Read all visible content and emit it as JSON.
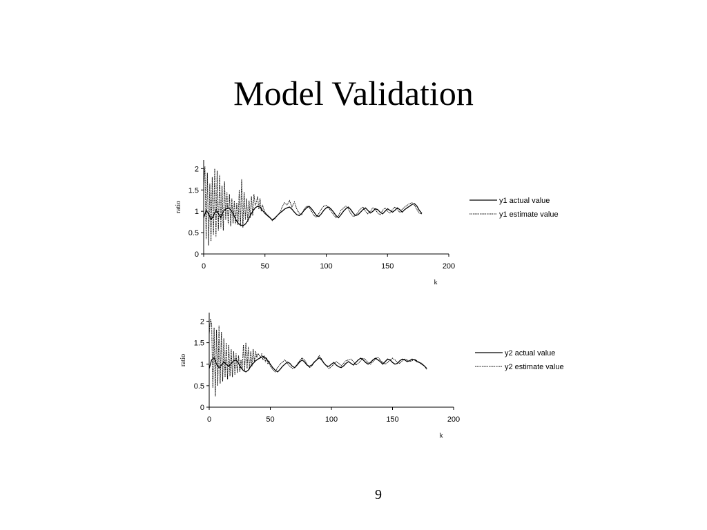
{
  "slide": {
    "title": "Model Validation",
    "page_number": "9"
  },
  "chart_data": [
    {
      "type": "line",
      "xlabel": "k",
      "ylabel": "ratio",
      "xlim": [
        0,
        200
      ],
      "ylim": [
        0,
        2.2
      ],
      "xticks": [
        0,
        50,
        100,
        150,
        200
      ],
      "yticks": [
        0,
        0.5,
        1,
        1.5,
        2
      ],
      "grid": false,
      "legend_position": "right",
      "series": [
        {
          "name": "y1 actual value",
          "style": "solid",
          "color": "#000000",
          "x": [
            0,
            2,
            4,
            6,
            8,
            10,
            12,
            14,
            16,
            18,
            20,
            22,
            24,
            26,
            28,
            30,
            32,
            34,
            36,
            38,
            40,
            42,
            44,
            46,
            48,
            50,
            52,
            54,
            56,
            58,
            60,
            62,
            64,
            66,
            68,
            70,
            72,
            74,
            76,
            78,
            80,
            82,
            84,
            86,
            88,
            90,
            92,
            94,
            96,
            98,
            100,
            102,
            104,
            106,
            108,
            110,
            112,
            114,
            116,
            118,
            120,
            122,
            124,
            126,
            128,
            130,
            132,
            134,
            136,
            138,
            140,
            142,
            144,
            146,
            148,
            150,
            152,
            154,
            156,
            158,
            160,
            162,
            164,
            166,
            168,
            170,
            172,
            174,
            176,
            178
          ],
          "y": [
            0.85,
            1.02,
            0.95,
            0.8,
            0.9,
            1.02,
            0.95,
            0.85,
            1.0,
            1.05,
            1.08,
            1.04,
            0.95,
            0.82,
            0.72,
            0.68,
            0.66,
            0.7,
            0.78,
            0.9,
            1.0,
            1.08,
            1.12,
            1.1,
            1.02,
            0.95,
            0.9,
            0.85,
            0.8,
            0.84,
            0.9,
            0.96,
            1.0,
            1.05,
            1.08,
            1.1,
            1.05,
            0.98,
            0.92,
            0.9,
            0.95,
            1.02,
            1.08,
            1.12,
            1.06,
            0.98,
            0.9,
            0.88,
            0.94,
            1.02,
            1.08,
            1.1,
            1.05,
            0.98,
            0.9,
            0.85,
            0.92,
            1.0,
            1.06,
            1.1,
            1.04,
            0.96,
            0.9,
            0.92,
            0.98,
            1.04,
            1.08,
            1.02,
            0.96,
            1.0,
            1.06,
            1.04,
            0.98,
            0.94,
            1.0,
            1.06,
            1.02,
            0.98,
            1.02,
            1.08,
            1.04,
            0.98,
            1.04,
            1.08,
            1.12,
            1.16,
            1.18,
            1.12,
            1.02,
            0.95
          ]
        },
        {
          "name": "y1 estimate value",
          "style": "dotted",
          "color": "#000000",
          "x": [
            0,
            1,
            2,
            3,
            4,
            5,
            6,
            7,
            8,
            9,
            10,
            11,
            12,
            13,
            14,
            15,
            16,
            17,
            18,
            19,
            20,
            21,
            22,
            23,
            24,
            25,
            26,
            27,
            28,
            29,
            30,
            31,
            32,
            33,
            34,
            35,
            36,
            37,
            38,
            39,
            40,
            41,
            42,
            43,
            44,
            45,
            46,
            47,
            48,
            49,
            50,
            52,
            54,
            56,
            58,
            60,
            62,
            64,
            66,
            68,
            70,
            72,
            74,
            76,
            78,
            80,
            82,
            84,
            86,
            88,
            90,
            92,
            94,
            96,
            98,
            100,
            102,
            104,
            106,
            108,
            110,
            112,
            114,
            116,
            118,
            120,
            122,
            124,
            126,
            128,
            130,
            132,
            134,
            136,
            138,
            140,
            142,
            144,
            146,
            148,
            150,
            152,
            154,
            156,
            158,
            160,
            162,
            164,
            166,
            168,
            170,
            172,
            174,
            176,
            178
          ],
          "y": [
            1.6,
            2.05,
            0.35,
            1.9,
            0.2,
            1.65,
            0.3,
            1.8,
            0.45,
            2.0,
            0.4,
            1.95,
            0.55,
            1.85,
            0.6,
            1.6,
            0.55,
            1.7,
            0.8,
            1.45,
            0.7,
            1.4,
            0.65,
            1.3,
            0.72,
            1.25,
            0.7,
            1.2,
            0.68,
            1.5,
            0.65,
            1.75,
            0.62,
            1.45,
            0.8,
            1.3,
            0.75,
            1.25,
            0.85,
            1.35,
            0.9,
            1.4,
            1.15,
            1.2,
            1.35,
            1.05,
            1.3,
            1.0,
            1.15,
            1.05,
            0.98,
            0.92,
            0.86,
            0.78,
            0.82,
            0.9,
            0.95,
            1.1,
            1.2,
            1.15,
            1.25,
            1.1,
            1.22,
            1.05,
            0.95,
            0.92,
            1.05,
            1.12,
            1.1,
            1.0,
            0.9,
            0.86,
            0.95,
            1.05,
            1.12,
            1.14,
            1.08,
            1.0,
            0.92,
            0.85,
            0.9,
            1.02,
            1.08,
            1.12,
            1.06,
            0.95,
            0.88,
            0.9,
            0.98,
            1.06,
            1.1,
            1.0,
            0.94,
            1.0,
            1.08,
            1.05,
            0.96,
            0.92,
            1.02,
            1.08,
            1.0,
            0.96,
            1.04,
            1.1,
            1.05,
            0.97,
            1.05,
            1.1,
            1.14,
            1.18,
            1.2,
            1.14,
            1.04,
            0.95,
            0.94
          ]
        }
      ]
    },
    {
      "type": "line",
      "xlabel": "k",
      "ylabel": "ratio",
      "xlim": [
        0,
        200
      ],
      "ylim": [
        0,
        2.2
      ],
      "xticks": [
        0,
        50,
        100,
        150,
        200
      ],
      "yticks": [
        0,
        0.5,
        1,
        1.5,
        2
      ],
      "grid": false,
      "legend_position": "right",
      "series": [
        {
          "name": "y2 actual value",
          "style": "solid",
          "color": "#000000",
          "x": [
            0,
            2,
            4,
            6,
            8,
            10,
            12,
            14,
            16,
            18,
            20,
            22,
            24,
            26,
            28,
            30,
            32,
            34,
            36,
            38,
            40,
            42,
            44,
            46,
            48,
            50,
            52,
            54,
            56,
            58,
            60,
            62,
            64,
            66,
            68,
            70,
            72,
            74,
            76,
            78,
            80,
            82,
            84,
            86,
            88,
            90,
            92,
            94,
            96,
            98,
            100,
            102,
            104,
            106,
            108,
            110,
            112,
            114,
            116,
            118,
            120,
            122,
            124,
            126,
            128,
            130,
            132,
            134,
            136,
            138,
            140,
            142,
            144,
            146,
            148,
            150,
            152,
            154,
            156,
            158,
            160,
            162,
            164,
            166,
            168,
            170,
            172,
            174,
            176,
            178
          ],
          "y": [
            0.9,
            1.1,
            1.15,
            1.0,
            0.92,
            0.98,
            1.05,
            1.0,
            0.95,
            1.02,
            1.08,
            1.1,
            1.02,
            0.92,
            0.85,
            0.82,
            0.86,
            0.95,
            1.02,
            1.08,
            1.12,
            1.15,
            1.18,
            1.15,
            1.08,
            1.0,
            0.92,
            0.86,
            0.82,
            0.88,
            0.95,
            1.0,
            1.05,
            1.02,
            0.95,
            0.92,
            0.98,
            1.05,
            1.1,
            1.05,
            0.98,
            0.95,
            0.98,
            1.05,
            1.1,
            1.15,
            1.1,
            1.02,
            0.96,
            0.95,
            1.0,
            1.04,
            0.98,
            0.94,
            0.92,
            0.96,
            1.02,
            1.06,
            1.02,
            0.98,
            1.04,
            1.1,
            1.14,
            1.1,
            1.04,
            1.0,
            1.04,
            1.1,
            1.14,
            1.1,
            1.06,
            1.0,
            1.06,
            1.12,
            1.1,
            1.04,
            1.0,
            1.02,
            1.08,
            1.12,
            1.1,
            1.06,
            1.08,
            1.12,
            1.1,
            1.06,
            1.04,
            1.0,
            0.96,
            0.9
          ]
        },
        {
          "name": "y2 estimate value",
          "style": "dotted",
          "color": "#000000",
          "x": [
            0,
            1,
            2,
            3,
            4,
            5,
            6,
            7,
            8,
            9,
            10,
            11,
            12,
            13,
            14,
            15,
            16,
            17,
            18,
            19,
            20,
            21,
            22,
            23,
            24,
            25,
            26,
            27,
            28,
            29,
            30,
            31,
            32,
            33,
            34,
            35,
            36,
            37,
            38,
            39,
            40,
            41,
            42,
            43,
            44,
            45,
            46,
            47,
            48,
            49,
            50,
            52,
            54,
            56,
            58,
            60,
            62,
            64,
            66,
            68,
            70,
            72,
            74,
            76,
            78,
            80,
            82,
            84,
            86,
            88,
            90,
            92,
            94,
            96,
            98,
            100,
            102,
            104,
            106,
            108,
            110,
            112,
            114,
            116,
            118,
            120,
            122,
            124,
            126,
            128,
            130,
            132,
            134,
            136,
            138,
            140,
            142,
            144,
            146,
            148,
            150,
            152,
            154,
            156,
            158,
            160,
            162,
            164,
            166,
            168,
            170,
            172,
            174,
            176,
            178
          ],
          "y": [
            1.7,
            2.05,
            1.95,
            0.45,
            1.85,
            0.25,
            1.8,
            0.5,
            1.9,
            0.55,
            1.75,
            0.6,
            1.6,
            0.7,
            1.5,
            0.65,
            1.45,
            0.72,
            1.35,
            0.7,
            1.3,
            0.75,
            1.25,
            0.8,
            1.2,
            0.82,
            1.1,
            0.9,
            1.45,
            0.85,
            1.5,
            0.9,
            1.4,
            0.88,
            1.3,
            0.95,
            1.35,
            1.05,
            1.3,
            1.15,
            1.25,
            1.2,
            1.15,
            1.25,
            1.1,
            1.2,
            1.05,
            1.15,
            1.0,
            1.08,
            0.95,
            0.88,
            0.82,
            0.92,
            1.0,
            1.05,
            1.1,
            1.02,
            0.95,
            0.9,
            0.92,
            1.0,
            1.08,
            1.15,
            1.1,
            1.0,
            0.92,
            0.96,
            1.04,
            1.1,
            1.2,
            1.12,
            1.02,
            0.96,
            0.9,
            0.94,
            1.0,
            1.06,
            1.02,
            0.96,
            1.02,
            1.08,
            1.1,
            1.12,
            1.06,
            0.98,
            1.02,
            1.08,
            1.14,
            1.1,
            1.04,
            1.0,
            1.06,
            1.12,
            1.16,
            1.1,
            1.04,
            1.0,
            1.04,
            1.1,
            1.14,
            1.1,
            1.04,
            1.02,
            1.08,
            1.12,
            1.1,
            1.06,
            1.08,
            1.12,
            1.08,
            1.04,
            1.02,
            0.96,
            0.88
          ]
        }
      ]
    }
  ]
}
